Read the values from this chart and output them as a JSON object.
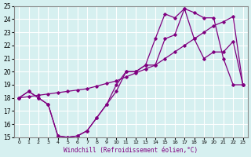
{
  "xlabel": "Windchill (Refroidissement éolien,°C)",
  "bg_color": "#d6f0f0",
  "grid_color": "#ffffff",
  "line_color": "#800080",
  "xlim": [
    -0.5,
    23.5
  ],
  "ylim": [
    15,
    25
  ],
  "xticks": [
    0,
    1,
    2,
    3,
    4,
    5,
    6,
    7,
    8,
    9,
    10,
    11,
    12,
    13,
    14,
    15,
    16,
    17,
    18,
    19,
    20,
    21,
    22,
    23
  ],
  "yticks": [
    15,
    16,
    17,
    18,
    19,
    20,
    21,
    22,
    23,
    24,
    25
  ],
  "series": [
    {
      "x": [
        0,
        1,
        2,
        3,
        4,
        5,
        6,
        7,
        8,
        9,
        10,
        11,
        12,
        13,
        14,
        15,
        16,
        17,
        18,
        19,
        20,
        21,
        22,
        23
      ],
      "y": [
        18,
        18.5,
        18.0,
        17.5,
        15.1,
        15.0,
        15.1,
        15.5,
        16.5,
        17.5,
        18.5,
        20.0,
        20.0,
        20.5,
        20.5,
        22.5,
        22.8,
        24.8,
        22.5,
        21.0,
        21.5,
        21.5,
        22.3,
        19.0
      ]
    },
    {
      "x": [
        0,
        1,
        2,
        3,
        4,
        5,
        6,
        7,
        8,
        9,
        10,
        11,
        12,
        13,
        14,
        15,
        16,
        17,
        18,
        19,
        20,
        21,
        22,
        23
      ],
      "y": [
        18.0,
        18.1,
        18.2,
        18.3,
        18.4,
        18.5,
        18.6,
        18.7,
        18.9,
        19.1,
        19.3,
        19.6,
        19.9,
        20.2,
        20.5,
        21.0,
        21.5,
        22.0,
        22.5,
        23.0,
        23.5,
        23.8,
        24.2,
        19.0
      ]
    },
    {
      "x": [
        0,
        1,
        2,
        3,
        4,
        5,
        6,
        7,
        8,
        9,
        10,
        11,
        12,
        13,
        14,
        15,
        16,
        17,
        18,
        19,
        20,
        21,
        22,
        23
      ],
      "y": [
        18,
        18.5,
        18.0,
        17.5,
        15.1,
        15.0,
        15.1,
        15.5,
        16.5,
        17.5,
        19.0,
        20.0,
        20.0,
        20.5,
        22.5,
        24.4,
        24.1,
        24.8,
        24.5,
        24.1,
        24.1,
        21.0,
        19.0,
        19.0
      ]
    }
  ]
}
